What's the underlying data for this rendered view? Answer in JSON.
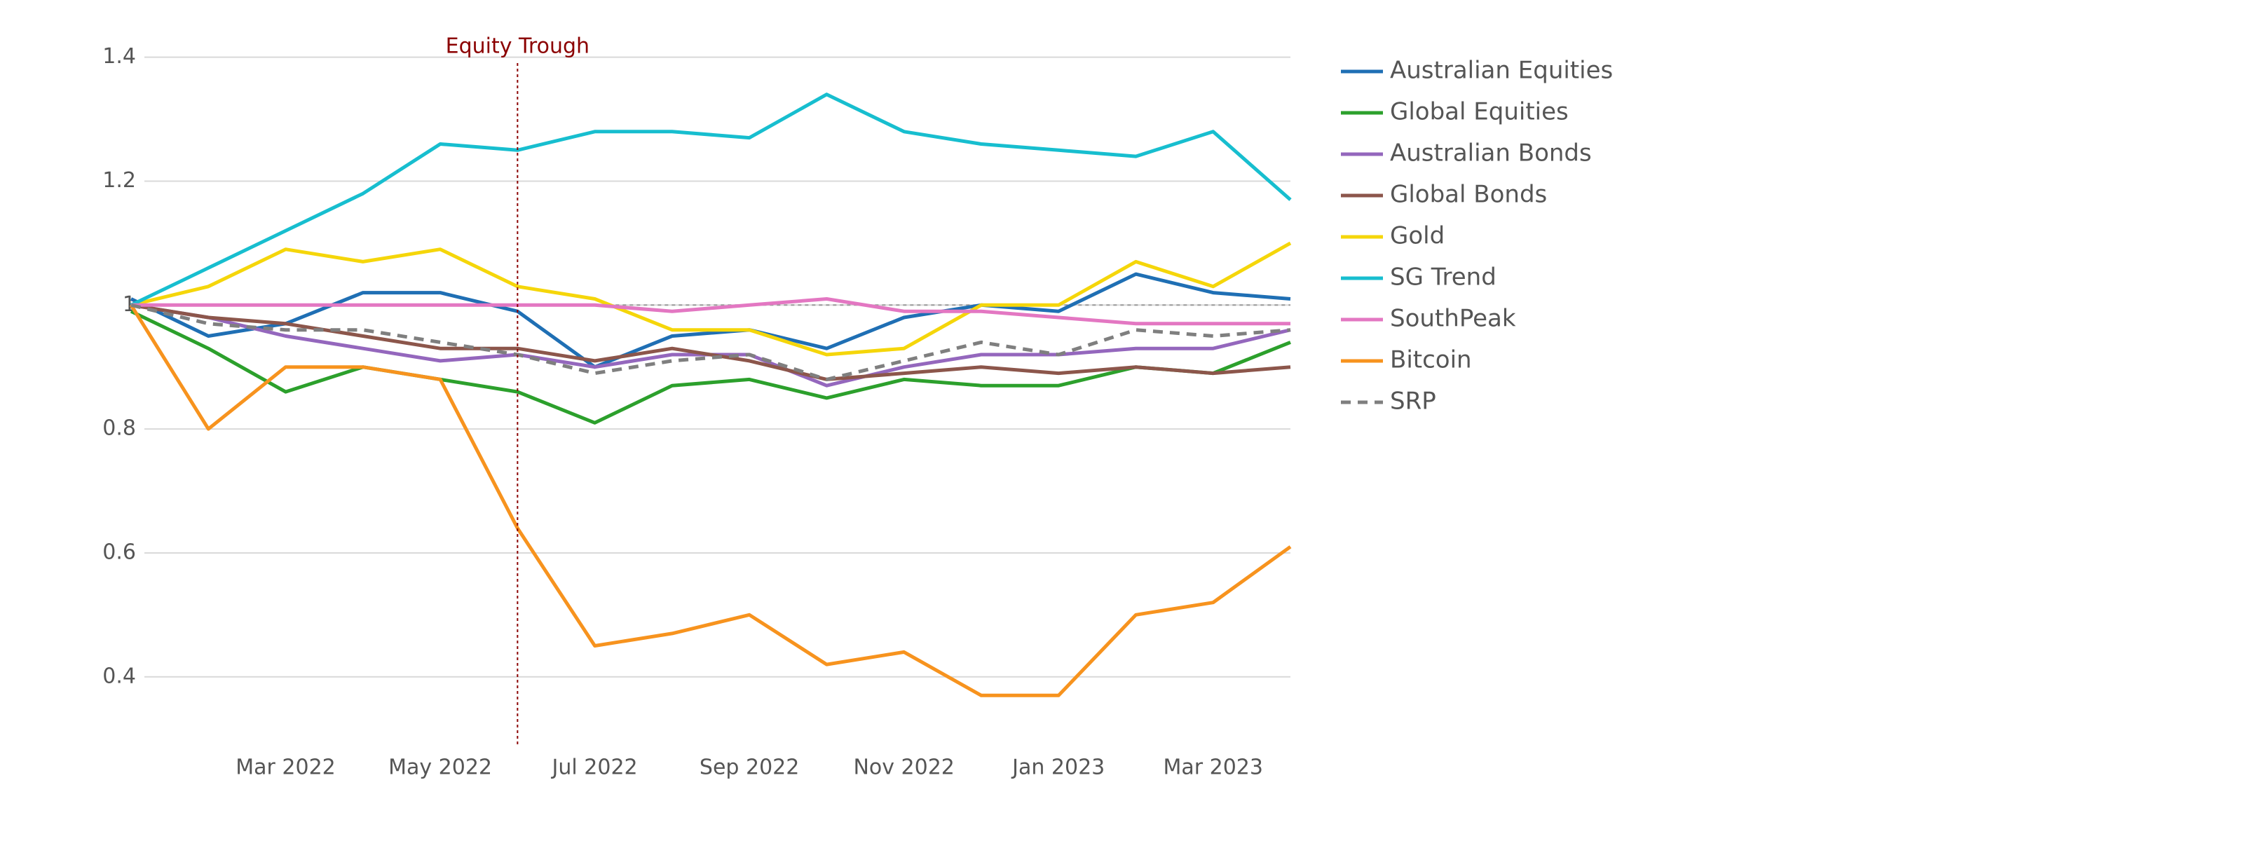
{
  "chart_data": {
    "type": "line",
    "x": [
      "2022-01",
      "2022-02",
      "2022-03",
      "2022-04",
      "2022-05",
      "2022-06",
      "2022-07",
      "2022-08",
      "2022-09",
      "2022-10",
      "2022-11",
      "2022-12",
      "2023-01",
      "2023-02",
      "2023-03",
      "2023-04"
    ],
    "xlim": [
      "2022-01",
      "2023-04"
    ],
    "xticks": [
      {
        "value": "2022-03",
        "label": "Mar 2022"
      },
      {
        "value": "2022-05",
        "label": "May 2022"
      },
      {
        "value": "2022-07",
        "label": "Jul 2022"
      },
      {
        "value": "2022-09",
        "label": "Sep 2022"
      },
      {
        "value": "2022-11",
        "label": "Nov 2022"
      },
      {
        "value": "2023-01",
        "label": "Jan 2023"
      },
      {
        "value": "2023-03",
        "label": "Mar 2023"
      }
    ],
    "ylim": [
      0.29,
      1.42
    ],
    "yticks": [
      0.4,
      0.6,
      0.8,
      1,
      1.2,
      1.4
    ],
    "grid": true,
    "reference_line": 1,
    "annotation": {
      "text": "Equity Trough",
      "x": "2022-06",
      "color": "#8b0000"
    },
    "series": [
      {
        "name": "Australian Equities",
        "color": "#1f6fb4",
        "values": [
          1.01,
          0.95,
          0.97,
          1.02,
          1.02,
          0.99,
          0.9,
          0.95,
          0.96,
          0.93,
          0.98,
          1.0,
          0.99,
          1.05,
          1.02,
          1.01
        ]
      },
      {
        "name": "Global Equities",
        "color": "#2ca02c",
        "values": [
          0.99,
          0.93,
          0.86,
          0.9,
          0.88,
          0.86,
          0.81,
          0.87,
          0.88,
          0.85,
          0.88,
          0.87,
          0.87,
          0.9,
          0.89,
          0.94
        ]
      },
      {
        "name": "Australian Bonds",
        "color": "#9467bd",
        "values": [
          1.0,
          0.98,
          0.95,
          0.93,
          0.91,
          0.92,
          0.9,
          0.92,
          0.92,
          0.87,
          0.9,
          0.92,
          0.92,
          0.93,
          0.93,
          0.96
        ]
      },
      {
        "name": "Global Bonds",
        "color": "#8c564b",
        "values": [
          1.0,
          0.98,
          0.97,
          0.95,
          0.93,
          0.93,
          0.91,
          0.93,
          0.91,
          0.88,
          0.89,
          0.9,
          0.89,
          0.9,
          0.89,
          0.9
        ]
      },
      {
        "name": "Gold",
        "color": "#f5d60a",
        "values": [
          1.0,
          1.03,
          1.09,
          1.07,
          1.09,
          1.03,
          1.01,
          0.96,
          0.96,
          0.92,
          0.93,
          1.0,
          1.0,
          1.07,
          1.03,
          1.1
        ]
      },
      {
        "name": "SG Trend",
        "color": "#17becf",
        "values": [
          1.0,
          1.06,
          1.12,
          1.18,
          1.26,
          1.25,
          1.28,
          1.28,
          1.27,
          1.34,
          1.28,
          1.26,
          1.25,
          1.24,
          1.28,
          1.17
        ]
      },
      {
        "name": "SouthPeak",
        "color": "#e377c2",
        "values": [
          1.0,
          1.0,
          1.0,
          1.0,
          1.0,
          1.0,
          1.0,
          0.99,
          1.0,
          1.01,
          0.99,
          0.99,
          0.98,
          0.97,
          0.97,
          0.97
        ]
      },
      {
        "name": "Bitcoin",
        "color": "#f7931e",
        "values": [
          1.0,
          0.8,
          0.9,
          0.9,
          0.88,
          0.64,
          0.45,
          0.47,
          0.5,
          0.42,
          0.44,
          0.37,
          0.37,
          0.5,
          0.52,
          0.61
        ]
      },
      {
        "name": "SRP",
        "color": "#7f7f7f",
        "dashed": true,
        "values": [
          1.0,
          0.97,
          0.96,
          0.96,
          0.94,
          0.92,
          0.89,
          0.91,
          0.92,
          0.88,
          0.91,
          0.94,
          0.92,
          0.96,
          0.95,
          0.96
        ]
      }
    ]
  }
}
